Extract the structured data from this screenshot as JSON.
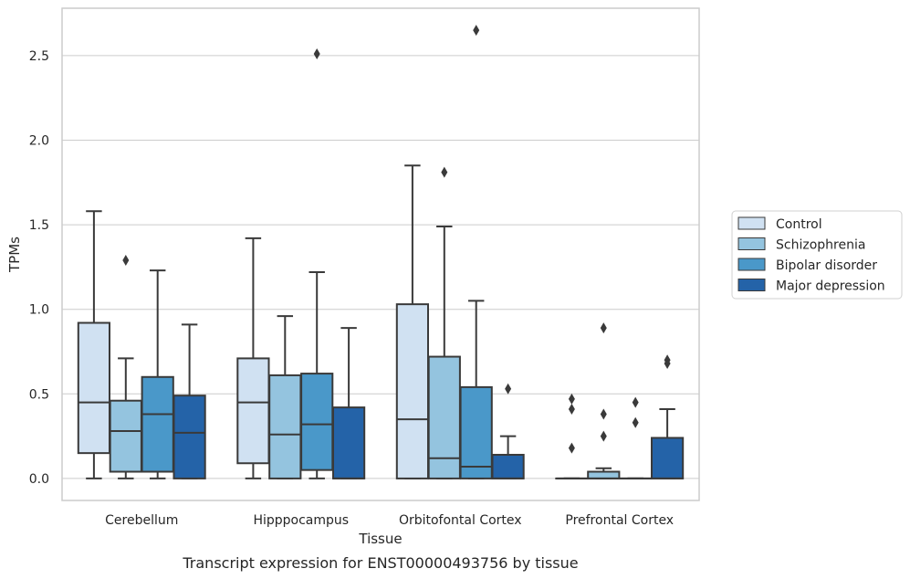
{
  "caption": "Transcript expression for ENST00000493756 by tissue",
  "chart_data": {
    "type": "boxplot",
    "xlabel": "Tissue",
    "ylabel": "TPMs",
    "ylim": [
      -0.13,
      2.78
    ],
    "yticks": [
      0.0,
      0.5,
      1.0,
      1.5,
      2.0,
      2.5
    ],
    "ytick_labels": [
      "0.0",
      "0.5",
      "1.0",
      "1.5",
      "2.0",
      "2.5"
    ],
    "categories": [
      "Cerebellum",
      "Hipppocampus",
      "Orbitofontal Cortex",
      "Prefrontal Cortex"
    ],
    "grid": "horizontal",
    "legend_position": "right",
    "series": [
      {
        "name": "Control",
        "color": "#d0e1f2",
        "boxes": [
          {
            "whislo": 0.0,
            "q1": 0.15,
            "med": 0.45,
            "q3": 0.92,
            "whishi": 1.58,
            "fliers": []
          },
          {
            "whislo": 0.0,
            "q1": 0.09,
            "med": 0.45,
            "q3": 0.71,
            "whishi": 1.42,
            "fliers": []
          },
          {
            "whislo": 0.0,
            "q1": 0.0,
            "med": 0.35,
            "q3": 1.03,
            "whishi": 1.85,
            "fliers": []
          },
          {
            "whislo": 0.0,
            "q1": 0.0,
            "med": 0.0,
            "q3": 0.0,
            "whishi": 0.0,
            "fliers": [
              0.18,
              0.41,
              0.47
            ]
          }
        ]
      },
      {
        "name": "Schizophrenia",
        "color": "#94c4df",
        "boxes": [
          {
            "whislo": 0.0,
            "q1": 0.04,
            "med": 0.28,
            "q3": 0.46,
            "whishi": 0.71,
            "fliers": [
              1.29
            ]
          },
          {
            "whislo": 0.0,
            "q1": 0.0,
            "med": 0.26,
            "q3": 0.61,
            "whishi": 0.96,
            "fliers": []
          },
          {
            "whislo": 0.0,
            "q1": 0.0,
            "med": 0.12,
            "q3": 0.72,
            "whishi": 1.49,
            "fliers": [
              1.81
            ]
          },
          {
            "whislo": 0.0,
            "q1": 0.0,
            "med": 0.0,
            "q3": 0.04,
            "whishi": 0.06,
            "fliers": [
              0.25,
              0.38,
              0.89
            ]
          }
        ]
      },
      {
        "name": "Bipolar disorder",
        "color": "#4a98c9",
        "boxes": [
          {
            "whislo": 0.0,
            "q1": 0.04,
            "med": 0.38,
            "q3": 0.6,
            "whishi": 1.23,
            "fliers": []
          },
          {
            "whislo": 0.0,
            "q1": 0.05,
            "med": 0.32,
            "q3": 0.62,
            "whishi": 1.22,
            "fliers": [
              2.51
            ]
          },
          {
            "whislo": 0.0,
            "q1": 0.0,
            "med": 0.07,
            "q3": 0.54,
            "whishi": 1.05,
            "fliers": [
              2.65
            ]
          },
          {
            "whislo": 0.0,
            "q1": 0.0,
            "med": 0.0,
            "q3": 0.0,
            "whishi": 0.0,
            "fliers": [
              0.33,
              0.45
            ]
          }
        ]
      },
      {
        "name": "Major depression",
        "color": "#2463a8",
        "boxes": [
          {
            "whislo": 0.0,
            "q1": 0.0,
            "med": 0.27,
            "q3": 0.49,
            "whishi": 0.91,
            "fliers": []
          },
          {
            "whislo": 0.0,
            "q1": 0.0,
            "med": 0.0,
            "q3": 0.42,
            "whishi": 0.89,
            "fliers": []
          },
          {
            "whislo": 0.0,
            "q1": 0.0,
            "med": 0.0,
            "q3": 0.14,
            "whishi": 0.25,
            "fliers": [
              0.53
            ]
          },
          {
            "whislo": 0.0,
            "q1": 0.0,
            "med": 0.0,
            "q3": 0.24,
            "whishi": 0.41,
            "fliers": [
              0.68,
              0.7
            ]
          }
        ]
      }
    ]
  },
  "colors": {
    "edge": "#3a3a3a",
    "grid": "#cccccc",
    "frame": "#cccccc"
  }
}
